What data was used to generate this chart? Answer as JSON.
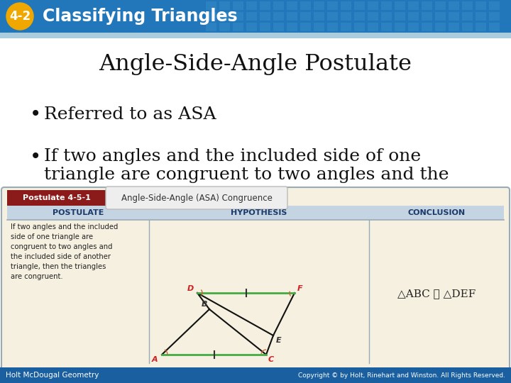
{
  "header_bg_color": "#2277bb",
  "header_text": "Classifying Triangles",
  "badge_color": "#f0a800",
  "badge_text": "4-2",
  "title_text": "Angle-Side-Angle Postulate",
  "bullet1": "Referred to as ASA",
  "bullet2_line1": "If two angles and the included side of one",
  "bullet2_line2": "triangle are congruent to two angles and the",
  "postulate_label": "Postulate 4-5-1",
  "postulate_title": "Angle-Side-Angle (ASA) Congruence",
  "col1_header": "POSTULATE",
  "col2_header": "HYPOTHESIS",
  "col3_header": "CONCLUSION",
  "postulate_text": "If two angles and the included\nside of one triangle are\ncongruent to two angles and\nthe included side of another\ntriangle, then the triangles\nare congruent.",
  "conclusion_text": "△ABC ≅ △DEF",
  "footer_left": "Holt McDougal Geometry",
  "footer_right": "Copyright © by Holt, Rinehart and Winston. All Rights Reserved.",
  "bg_color": "#ffffff",
  "footer_bg": "#1a5fa0",
  "table_bg": "#f5f0e0",
  "table_border": "#9aabb8",
  "col_header_bg": "#c5d4e3",
  "postulate_label_bg": "#8b1a1a",
  "postulate_title_bg": "#e0e0e0",
  "green_line_color": "#44aa44",
  "red_label_color": "#cc2222",
  "dark_label_color": "#333333",
  "grid_color": "#5599cc"
}
